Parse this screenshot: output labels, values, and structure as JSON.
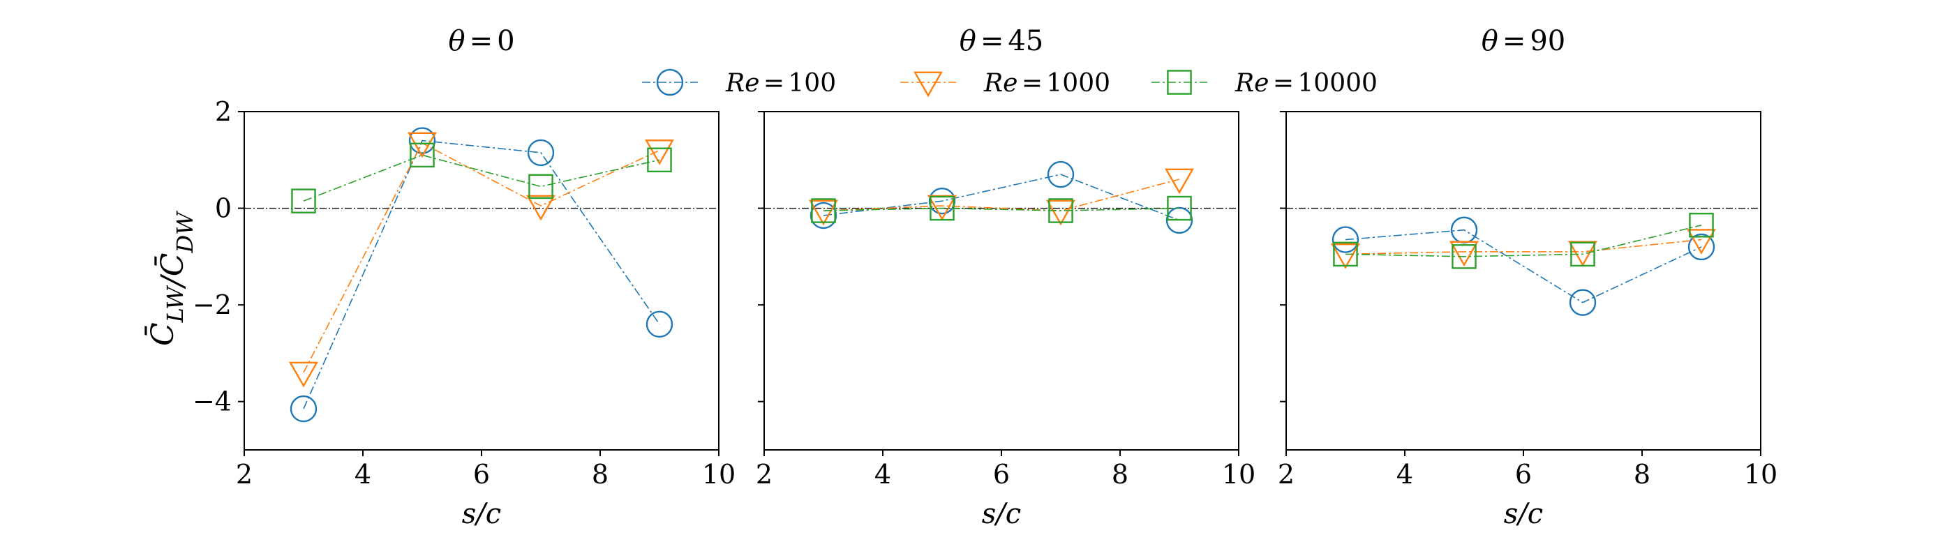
{
  "colors": {
    "re100": "#1f77b4",
    "re1000": "#ff7f0e",
    "re10000": "#2ca02c",
    "refline": "#000000",
    "axes": "#000000"
  },
  "legend": {
    "placement": "top-center",
    "entries": [
      {
        "label": "Re = 100",
        "marker": "circle",
        "color_key": "re100"
      },
      {
        "label": "Re = 1000",
        "marker": "triangle-down",
        "color_key": "re1000"
      },
      {
        "label": "Re = 10000",
        "marker": "square",
        "color_key": "re10000"
      }
    ]
  },
  "ylabel": "C̄LW / C̄DW",
  "chart_data": [
    {
      "type": "line",
      "title": "θ = 0",
      "xlabel": "s/c",
      "ylabel": "C̄LW / C̄DW",
      "xlim": [
        2,
        10
      ],
      "ylim": [
        -5,
        2
      ],
      "xticks": [
        2,
        4,
        6,
        8,
        10
      ],
      "yticks": [
        -4,
        -2,
        0,
        2
      ],
      "x": [
        3,
        5,
        7,
        9
      ],
      "reference_line": 0,
      "grid": false,
      "series": [
        {
          "name": "Re = 100",
          "values": [
            -4.15,
            1.4,
            1.15,
            -2.4
          ]
        },
        {
          "name": "Re = 1000",
          "values": [
            -3.4,
            1.35,
            0.05,
            1.2
          ]
        },
        {
          "name": "Re = 10000",
          "values": [
            0.15,
            1.1,
            0.45,
            1.0
          ]
        }
      ]
    },
    {
      "type": "line",
      "title": "θ = 45",
      "xlabel": "s/c",
      "xlim": [
        2,
        10
      ],
      "ylim": [
        -5,
        2
      ],
      "xticks": [
        2,
        4,
        6,
        8,
        10
      ],
      "yticks": [
        -4,
        -2,
        0,
        2
      ],
      "x": [
        3,
        5,
        7,
        9
      ],
      "reference_line": 0,
      "grid": false,
      "series": [
        {
          "name": "Re = 100",
          "values": [
            -0.15,
            0.15,
            0.7,
            -0.25
          ]
        },
        {
          "name": "Re = 1000",
          "values": [
            -0.05,
            0.05,
            -0.05,
            0.6
          ]
        },
        {
          "name": "Re = 10000",
          "values": [
            -0.05,
            0.0,
            -0.05,
            0.0
          ]
        }
      ]
    },
    {
      "type": "line",
      "title": "θ = 90",
      "xlabel": "s/c",
      "xlim": [
        2,
        10
      ],
      "ylim": [
        -5,
        2
      ],
      "xticks": [
        2,
        4,
        6,
        8,
        10
      ],
      "yticks": [
        -4,
        -2,
        0,
        2
      ],
      "x": [
        3,
        5,
        7,
        9
      ],
      "reference_line": 0,
      "grid": false,
      "series": [
        {
          "name": "Re = 100",
          "values": [
            -0.65,
            -0.45,
            -1.95,
            -0.8
          ]
        },
        {
          "name": "Re = 1000",
          "values": [
            -0.95,
            -0.9,
            -0.9,
            -0.65
          ]
        },
        {
          "name": "Re = 10000",
          "values": [
            -0.95,
            -1.0,
            -0.95,
            -0.35
          ]
        }
      ]
    }
  ]
}
